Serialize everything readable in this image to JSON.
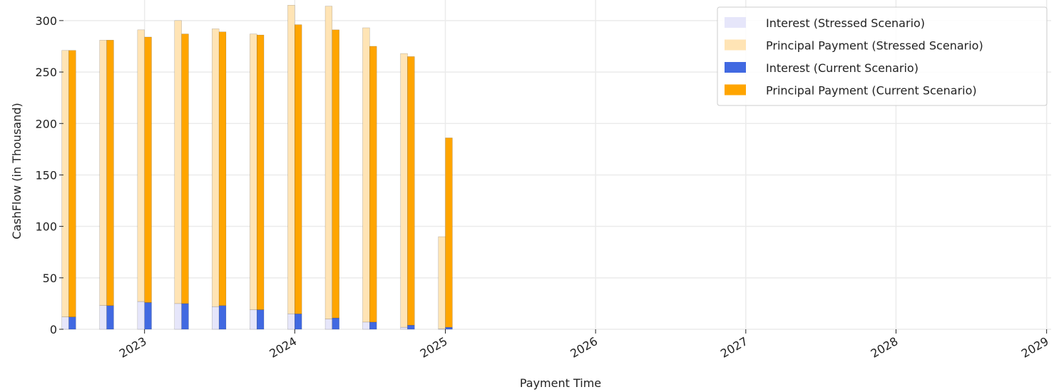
{
  "chart_data": {
    "type": "bar",
    "xlabel": "Payment Time",
    "ylabel": "CashFlow (in Thousand)",
    "ylim": [
      0,
      320
    ],
    "yticks": [
      0,
      50,
      100,
      150,
      200,
      250,
      300
    ],
    "xlim": [
      "2022-06-18",
      "2029-01-12"
    ],
    "xticks": [
      {
        "date": "2023-01-01",
        "label": "2023"
      },
      {
        "date": "2024-01-01",
        "label": "2024"
      },
      {
        "date": "2025-01-01",
        "label": "2025"
      },
      {
        "date": "2026-01-01",
        "label": "2026"
      },
      {
        "date": "2027-01-01",
        "label": "2027"
      },
      {
        "date": "2028-01-01",
        "label": "2028"
      },
      {
        "date": "2029-01-01",
        "label": "2029"
      }
    ],
    "grid": true,
    "legend_position": "top-right",
    "stacked": true,
    "dates": [
      "2022-07-01",
      "2022-10-01",
      "2023-01-01",
      "2023-04-01",
      "2023-07-01",
      "2023-10-01",
      "2024-01-01",
      "2024-04-01",
      "2024-07-01",
      "2024-10-01",
      "2025-01-01"
    ],
    "scenarios": [
      {
        "name": "Stressed Scenario",
        "series": [
          {
            "name": "Interest (Stressed Scenario)",
            "color": "#e6e6fa",
            "values": [
              12,
              23,
              27,
              25,
              22,
              19,
              15,
              10,
              7,
              2,
              0.5
            ]
          },
          {
            "name": "Principal Payment (Stressed Scenario)",
            "color": "#ffe4b5",
            "values": [
              259,
              258,
              264,
              275,
              270,
              268,
              300,
              304,
              286,
              266,
              89.5
            ]
          }
        ]
      },
      {
        "name": "Current Scenario",
        "series": [
          {
            "name": "Interest (Current Scenario)",
            "color": "#4169e1",
            "values": [
              12,
              23,
              26,
              25,
              23,
              19,
              15,
              11,
              7,
              4,
              2
            ]
          },
          {
            "name": "Principal Payment (Current Scenario)",
            "color": "#ffa500",
            "values": [
              259,
              258,
              258,
              262,
              266,
              267,
              281,
              280,
              268,
              261,
              184
            ]
          }
        ]
      }
    ]
  }
}
